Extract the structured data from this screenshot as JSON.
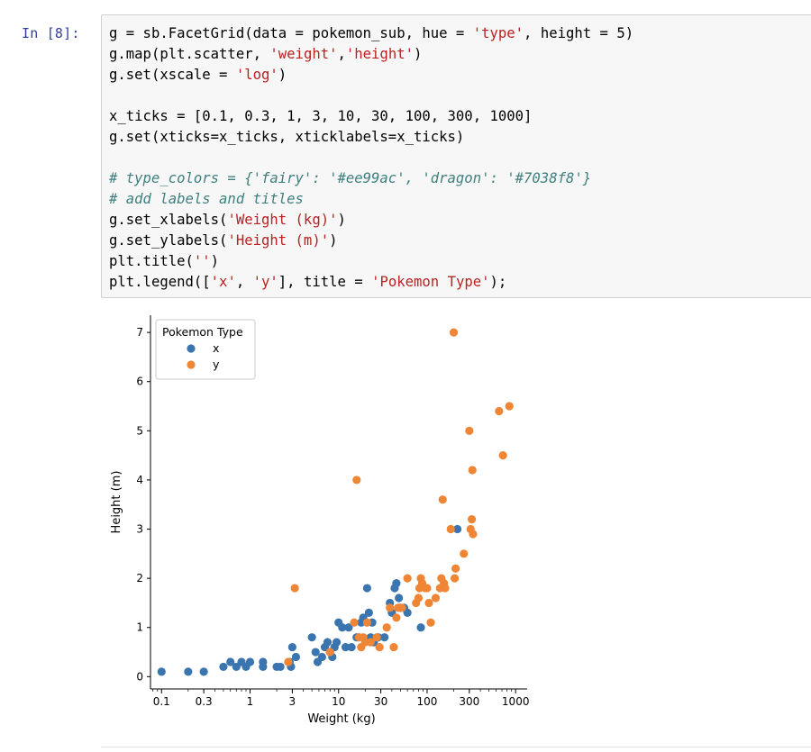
{
  "cell": {
    "prompt": "In [8]:",
    "code_lines": [
      [
        {
          "t": "g = sb.FacetGrid(data = pokemon_sub, hue = ",
          "c": ""
        },
        {
          "t": "'type'",
          "c": "str"
        },
        {
          "t": ", height = 5)",
          "c": ""
        }
      ],
      [
        {
          "t": "g.map(plt.scatter, ",
          "c": ""
        },
        {
          "t": "'weight'",
          "c": "str"
        },
        {
          "t": ",",
          "c": ""
        },
        {
          "t": "'height'",
          "c": "str"
        },
        {
          "t": ")",
          "c": ""
        }
      ],
      [
        {
          "t": "g.set(xscale = ",
          "c": ""
        },
        {
          "t": "'log'",
          "c": "str"
        },
        {
          "t": ")",
          "c": ""
        }
      ],
      [],
      [
        {
          "t": "x_ticks = [0.1, 0.3, 1, 3, 10, 30, 100, 300, 1000]",
          "c": ""
        }
      ],
      [
        {
          "t": "g.set(xticks=x_ticks, xticklabels=x_ticks)",
          "c": ""
        }
      ],
      [],
      [
        {
          "t": "# type_colors = {'fairy': '#ee99ac', 'dragon': '#7038f8'}",
          "c": "com"
        }
      ],
      [
        {
          "t": "# add labels and titles",
          "c": "com"
        }
      ],
      [
        {
          "t": "g.set_xlabels(",
          "c": ""
        },
        {
          "t": "'Weight (kg)'",
          "c": "str"
        },
        {
          "t": ")",
          "c": ""
        }
      ],
      [
        {
          "t": "g.set_ylabels(",
          "c": ""
        },
        {
          "t": "'Height (m)'",
          "c": "str"
        },
        {
          "t": ")",
          "c": ""
        }
      ],
      [
        {
          "t": "plt.title(",
          "c": ""
        },
        {
          "t": "''",
          "c": "str"
        },
        {
          "t": ")",
          "c": ""
        }
      ],
      [
        {
          "t": "plt.legend([",
          "c": ""
        },
        {
          "t": "'x'",
          "c": "str"
        },
        {
          "t": ", ",
          "c": ""
        },
        {
          "t": "'y'",
          "c": "str"
        },
        {
          "t": "], title = ",
          "c": ""
        },
        {
          "t": "'Pokemon Type'",
          "c": "str"
        },
        {
          "t": ");",
          "c": ""
        }
      ]
    ]
  },
  "chart_data": {
    "type": "scatter",
    "title": "",
    "xlabel": "Weight (kg)",
    "ylabel": "Height (m)",
    "xscale": "log",
    "xlim": [
      0.075,
      1350
    ],
    "ylim": [
      -0.25,
      7.35
    ],
    "xticks": [
      0.1,
      0.3,
      1,
      3,
      10,
      30,
      100,
      300,
      1000
    ],
    "xticklabels": [
      "0.1",
      "0.3",
      "1",
      "3",
      "10",
      "30",
      "100",
      "300",
      "1000"
    ],
    "yticks": [
      0,
      1,
      2,
      3,
      4,
      5,
      6,
      7
    ],
    "yticklabels": [
      "0",
      "1",
      "2",
      "3",
      "4",
      "5",
      "6",
      "7"
    ],
    "grid": false,
    "legend": {
      "title": "Pokemon Type",
      "position": "top-left"
    },
    "series": [
      {
        "name": "x",
        "color": "#3b75af",
        "points": [
          [
            0.1,
            0.1
          ],
          [
            0.2,
            0.1
          ],
          [
            0.3,
            0.1
          ],
          [
            0.5,
            0.2
          ],
          [
            0.6,
            0.3
          ],
          [
            0.7,
            0.2
          ],
          [
            0.8,
            0.3
          ],
          [
            0.9,
            0.2
          ],
          [
            1.0,
            0.3
          ],
          [
            1.4,
            0.3
          ],
          [
            1.4,
            0.2
          ],
          [
            2.0,
            0.2
          ],
          [
            2.2,
            0.2
          ],
          [
            2.8,
            0.3
          ],
          [
            2.9,
            0.2
          ],
          [
            3.0,
            0.6
          ],
          [
            3.3,
            0.4
          ],
          [
            5.0,
            0.8
          ],
          [
            5.5,
            0.5
          ],
          [
            5.8,
            0.3
          ],
          [
            6.5,
            0.4
          ],
          [
            7.0,
            0.6
          ],
          [
            7.5,
            0.7
          ],
          [
            8.0,
            0.5
          ],
          [
            8.5,
            0.4
          ],
          [
            9.0,
            0.6
          ],
          [
            9.5,
            0.7
          ],
          [
            10.0,
            1.1
          ],
          [
            11.0,
            1.0
          ],
          [
            12.0,
            0.6
          ],
          [
            13.0,
            1.0
          ],
          [
            14.0,
            0.6
          ],
          [
            16.0,
            0.8
          ],
          [
            17.0,
            0.8
          ],
          [
            18.0,
            1.1
          ],
          [
            19.0,
            1.2
          ],
          [
            21.0,
            1.8
          ],
          [
            22.0,
            1.3
          ],
          [
            23.0,
            0.8
          ],
          [
            24.0,
            1.1
          ],
          [
            25.0,
            0.7
          ],
          [
            28.0,
            0.8
          ],
          [
            33.0,
            0.8
          ],
          [
            38.0,
            1.5
          ],
          [
            40.0,
            1.3
          ],
          [
            43.0,
            1.8
          ],
          [
            45.0,
            1.9
          ],
          [
            48.0,
            1.6
          ],
          [
            50.0,
            1.4
          ],
          [
            55.0,
            1.4
          ],
          [
            60.0,
            1.3
          ],
          [
            85.0,
            1.0
          ],
          [
            220.0,
            3.0
          ]
        ]
      },
      {
        "name": "y",
        "color": "#ef8636",
        "points": [
          [
            2.7,
            0.3
          ],
          [
            3.2,
            1.8
          ],
          [
            8.0,
            0.5
          ],
          [
            15.0,
            1.1
          ],
          [
            16.0,
            4.0
          ],
          [
            17.0,
            0.8
          ],
          [
            18.0,
            0.6
          ],
          [
            19.0,
            0.8
          ],
          [
            20.0,
            0.7
          ],
          [
            21.0,
            1.1
          ],
          [
            23.0,
            0.7
          ],
          [
            27.0,
            0.8
          ],
          [
            29.0,
            0.6
          ],
          [
            35.0,
            1.0
          ],
          [
            38.0,
            1.4
          ],
          [
            42.0,
            0.6
          ],
          [
            45.0,
            1.2
          ],
          [
            47.0,
            1.4
          ],
          [
            52.0,
            1.4
          ],
          [
            60.0,
            2.0
          ],
          [
            75.0,
            1.5
          ],
          [
            80.0,
            1.6
          ],
          [
            82.0,
            1.8
          ],
          [
            85.0,
            2.0
          ],
          [
            88.0,
            1.9
          ],
          [
            95.0,
            1.8
          ],
          [
            100.0,
            1.8
          ],
          [
            105.0,
            1.5
          ],
          [
            110.0,
            1.1
          ],
          [
            125.0,
            1.6
          ],
          [
            140.0,
            1.8
          ],
          [
            145.0,
            2.0
          ],
          [
            150.0,
            3.6
          ],
          [
            155.0,
            1.9
          ],
          [
            160.0,
            1.8
          ],
          [
            185.0,
            3.0
          ],
          [
            200.0,
            7.0
          ],
          [
            205.0,
            2.0
          ],
          [
            210.0,
            2.2
          ],
          [
            260.0,
            2.5
          ],
          [
            300.0,
            5.0
          ],
          [
            310.0,
            3.0
          ],
          [
            320.0,
            3.2
          ],
          [
            325.0,
            4.2
          ],
          [
            330.0,
            2.9
          ],
          [
            650.0,
            5.4
          ],
          [
            720.0,
            4.5
          ],
          [
            850.0,
            5.5
          ]
        ]
      }
    ]
  }
}
